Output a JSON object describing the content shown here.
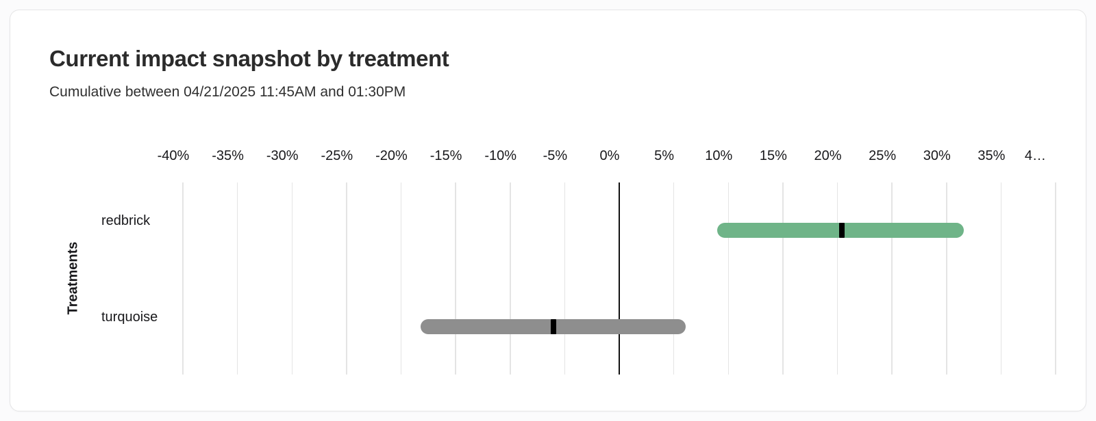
{
  "card": {
    "title": "Current impact snapshot by treatment",
    "subtitle": "Cumulative between 04/21/2025 11:45AM and 01:30PM"
  },
  "chart_data": {
    "type": "bar",
    "subtype": "horizontal_range_bar_with_point_estimate",
    "title": "Current impact snapshot by treatment",
    "subtitle": "Cumulative between 04/21/2025 11:45AM and 01:30PM",
    "xlabel": "",
    "ylabel": "Treatments",
    "unit": "%",
    "axis": {
      "min": -40,
      "max": 40,
      "grid": true,
      "zero_line": 0
    },
    "x_ticks": [
      {
        "value": -40,
        "label": "-40%"
      },
      {
        "value": -35,
        "label": "-35%"
      },
      {
        "value": -30,
        "label": "-30%"
      },
      {
        "value": -25,
        "label": "-25%"
      },
      {
        "value": -20,
        "label": "-20%"
      },
      {
        "value": -15,
        "label": "-15%"
      },
      {
        "value": -10,
        "label": "-10%"
      },
      {
        "value": -5,
        "label": "-5%"
      },
      {
        "value": 0,
        "label": "0%"
      },
      {
        "value": 5,
        "label": "5%"
      },
      {
        "value": 10,
        "label": "10%"
      },
      {
        "value": 15,
        "label": "15%"
      },
      {
        "value": 20,
        "label": "20%"
      },
      {
        "value": 25,
        "label": "25%"
      },
      {
        "value": 30,
        "label": "30%"
      },
      {
        "value": 35,
        "label": "35%"
      },
      {
        "value": 40,
        "label": "4…",
        "align": "end"
      }
    ],
    "categories": [
      "redbrick",
      "turquoise"
    ],
    "series": [
      {
        "name": "redbrick",
        "ci_low": 9.0,
        "ci_high": 31.6,
        "estimate": 20.4,
        "bar_color": "#6fb488"
      },
      {
        "name": "turquoise",
        "ci_low": -18.2,
        "ci_high": 6.1,
        "estimate": -6.0,
        "bar_color": "#8e8e8e"
      }
    ],
    "legend": "none"
  },
  "colors": {
    "positive_bar": "#6fb488",
    "neutral_bar": "#8e8e8e",
    "estimate_marker": "#000000",
    "gridline": "#e4e4e4",
    "zero_line": "#111111",
    "card_border": "#e5e5e6",
    "title_text": "#2b2b2b"
  }
}
